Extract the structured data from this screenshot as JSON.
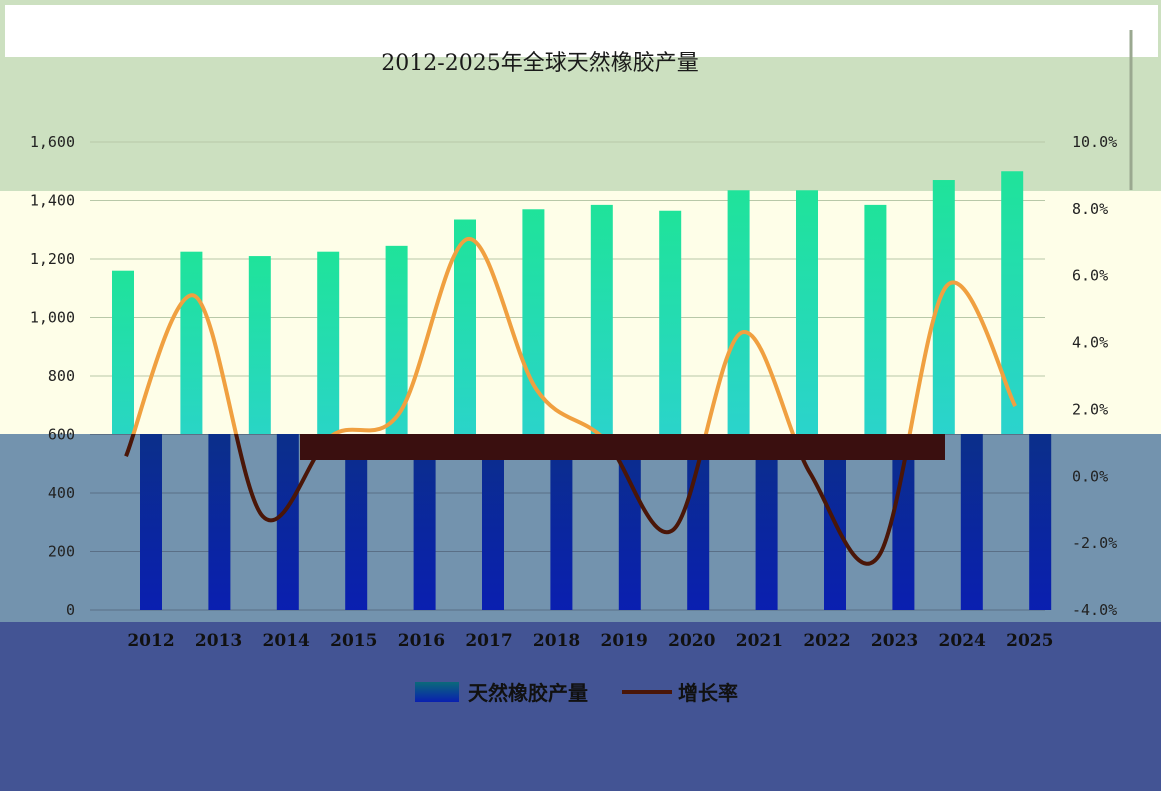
{
  "chart_data": {
    "type": "bar",
    "title": "2012-2025年全球天然橡胶产量",
    "categories": [
      "2012",
      "2013",
      "2014",
      "2015",
      "2016",
      "2017",
      "2018",
      "2019",
      "2020",
      "2021",
      "2022",
      "2023",
      "2024",
      "2025"
    ],
    "series": [
      {
        "name": "天然橡胶产量",
        "type": "bar",
        "axis": "left",
        "values": [
          1160,
          1225,
          1210,
          1225,
          1245,
          1335,
          1370,
          1385,
          1365,
          1435,
          1435,
          1385,
          1470,
          1500
        ]
      },
      {
        "name": "增长率",
        "type": "line",
        "axis": "right",
        "values": [
          0.6,
          5.4,
          -1.2,
          1.2,
          1.9,
          7.1,
          2.6,
          1.1,
          -1.6,
          4.3,
          0.1,
          -2.4,
          5.7,
          2.1
        ]
      }
    ],
    "left_axis": {
      "ticks": [
        "0",
        "200",
        "400",
        "600",
        "800",
        "1,000",
        "1,200",
        "1,400",
        "1,600"
      ],
      "ylim": [
        0,
        1600
      ]
    },
    "right_axis": {
      "ticks": [
        "-4.0%",
        "-2.0%",
        "0.0%",
        "2.0%",
        "4.0%",
        "6.0%",
        "8.0%",
        "10.0%"
      ],
      "ylim": [
        -4,
        10
      ]
    },
    "legend": {
      "placement": "bottom"
    },
    "grid": true,
    "colors": {
      "bar": "#2fd3a3",
      "bar_lower": "#0a2aa0",
      "line": "#f0a040",
      "line_lower": "#4a1608"
    }
  }
}
